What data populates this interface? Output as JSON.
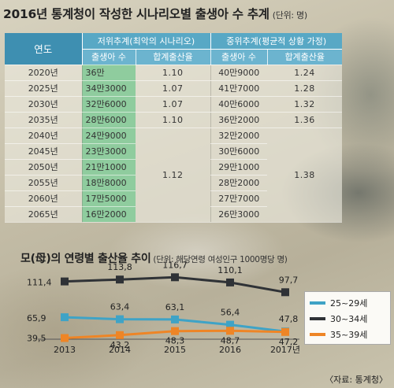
{
  "title": "2016년 통계청이 작성한 시나리오별 출생아 수 추계",
  "title_unit": "(단위: 명)",
  "table": {
    "col_year": "연도",
    "group_low": "저위추계(최악의 시나리오)",
    "group_mid": "중위추계(평균적 상황 가정)",
    "sub_births": "출생아 수",
    "sub_rate": "합계출산율",
    "rows": [
      {
        "year": "2020년",
        "low_births": "36만",
        "low_rate": "1.10",
        "mid_births": "40만9000",
        "mid_rate": "1.24"
      },
      {
        "year": "2025년",
        "low_births": "34만3000",
        "low_rate": "1.07",
        "mid_births": "41만7000",
        "mid_rate": "1.28"
      },
      {
        "year": "2030년",
        "low_births": "32만6000",
        "low_rate": "1.07",
        "mid_births": "40만6000",
        "mid_rate": "1.32"
      },
      {
        "year": "2035년",
        "low_births": "28만6000",
        "low_rate": "1.10",
        "mid_births": "36만2000",
        "mid_rate": "1.36"
      },
      {
        "year": "2040년",
        "low_births": "24만9000",
        "mid_births": "32만2000"
      },
      {
        "year": "2045년",
        "low_births": "23만3000",
        "mid_births": "30만6000"
      },
      {
        "year": "2050년",
        "low_births": "21만1000",
        "mid_births": "29만1000"
      },
      {
        "year": "2055년",
        "low_births": "18만8000",
        "mid_births": "28만2000"
      },
      {
        "year": "2060년",
        "low_births": "17만5000",
        "mid_births": "27만7000"
      },
      {
        "year": "2065년",
        "low_births": "16만2000",
        "mid_births": "26만3000"
      }
    ],
    "merged_low_rate": "1.12",
    "merged_mid_rate": "1.38"
  },
  "chart_title": "모(母)의 연령별 출산율 추이",
  "chart_unit": "(단위: 해당연령 여성인구 1000명당 명)",
  "source": "〈자료: 통계청〉",
  "chart_data": {
    "type": "line",
    "title": "모(母)의 연령별 출산율 추이",
    "categories": [
      "2013",
      "2014",
      "2015",
      "2016",
      "2017년"
    ],
    "ylim": [
      30,
      125
    ],
    "legend_position": "right",
    "series": [
      {
        "name": "25~29세",
        "color": "#3fa3c6",
        "values": [
          65.9,
          63.4,
          63.1,
          56.4,
          47.8
        ],
        "labels": [
          "65,9",
          "63,4",
          "63,1",
          "56,4",
          "47,8"
        ]
      },
      {
        "name": "30~34세",
        "color": "#2f3236",
        "values": [
          111.4,
          113.8,
          116.7,
          110.1,
          97.7
        ],
        "labels": [
          "111,4",
          "113,8",
          "116,7",
          "110,1",
          "97,7"
        ]
      },
      {
        "name": "35~39세",
        "color": "#ee8526",
        "values": [
          39.5,
          43.2,
          48.3,
          48.7,
          47.2
        ],
        "labels": [
          "39,5",
          "43,2",
          "48,3",
          "48,7",
          "47,2"
        ]
      }
    ]
  }
}
